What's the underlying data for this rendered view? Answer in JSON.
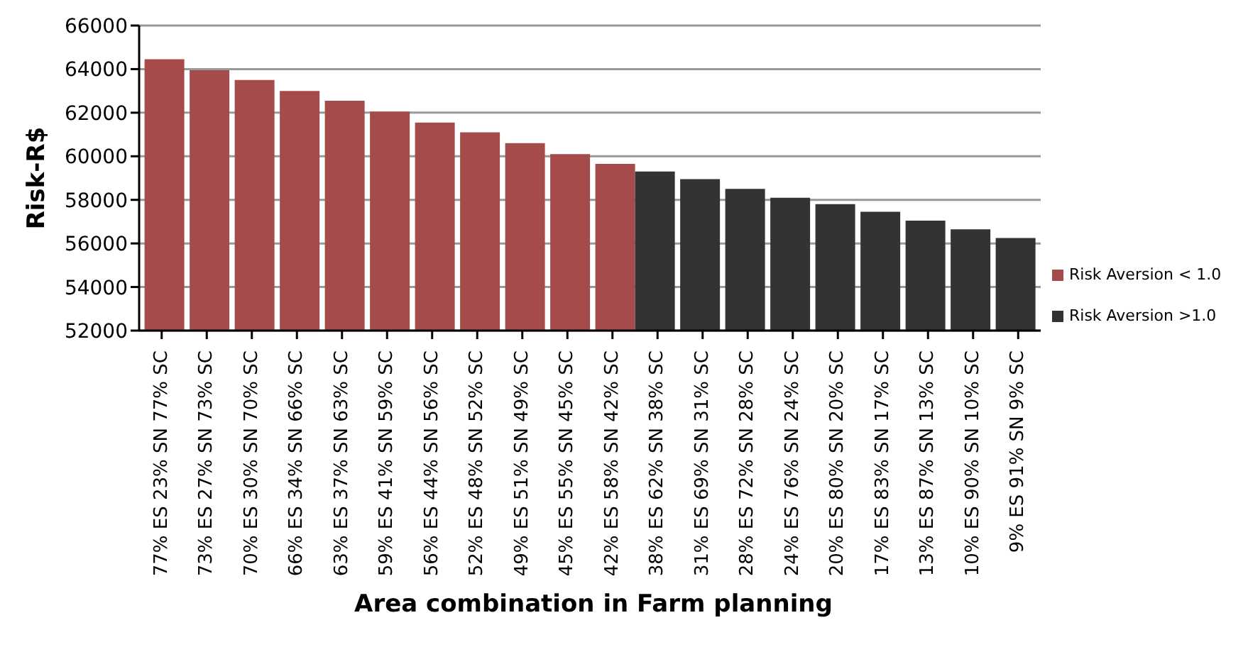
{
  "chart_data": {
    "type": "bar",
    "xlabel": "Area combination in Farm planning",
    "ylabel": "Risk-R$",
    "categories": [
      "77% ES 23% SN 77% SC",
      "73% ES 27% SN 73% SC",
      "70% ES 30% SN 70% SC",
      "66% ES 34% SN 66% SC",
      "63% ES 37% SN 63% SC",
      "59% ES 41% SN 59% SC",
      "56% ES 44% SN 56% SC",
      "52% ES 48% SN 52% SC",
      "49% ES 51% SN 49% SC",
      "45% ES 55% SN 45% SC",
      "42% ES 58% SN 42% SC",
      "38% ES 62% SN 38% SC",
      "31% ES 69% SN 31% SC",
      "28% ES 72% SN 28% SC",
      "24% ES 76% SN 24% SC",
      "20% ES 80% SN 20% SC",
      "17% ES 83% SN 17% SC",
      "13% ES 87% SN 13% SC",
      "10% ES 90% SN 10% SC",
      "9% ES 91% SN 9% SC"
    ],
    "series": [
      {
        "name": "Risk Aversion < 1.0",
        "color": "#a64b4b",
        "values": [
          64450,
          63950,
          63500,
          63000,
          62550,
          62050,
          61550,
          61100,
          60600,
          60100,
          59650,
          null,
          null,
          null,
          null,
          null,
          null,
          null,
          null,
          null
        ]
      },
      {
        "name": "Risk Aversion >1.0",
        "color": "#333333",
        "values": [
          null,
          null,
          null,
          null,
          null,
          null,
          null,
          null,
          null,
          null,
          null,
          59300,
          58950,
          58500,
          58100,
          57800,
          57450,
          57050,
          56650,
          56250
        ]
      }
    ],
    "ylim": [
      52000,
      66000
    ],
    "yticks": [
      52000,
      54000,
      56000,
      58000,
      60000,
      62000,
      64000,
      66000
    ],
    "grid": "y",
    "legend": "right"
  }
}
